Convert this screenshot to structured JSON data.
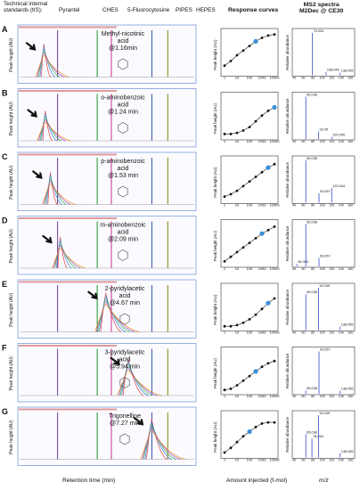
{
  "header": {
    "tis_line1": "Technical internal",
    "tis_line2": "standards (tIS):",
    "standards": [
      "Pyrantel",
      "CHES",
      "5-Fluorocytosine",
      "PIPES",
      "HEPES"
    ],
    "response_title": "Response curves",
    "ms2_title_line1": "MS2 spectra",
    "ms2_title_line2": "M2Dec @ CE30"
  },
  "footer": {
    "retention_label": "Retention time (min)",
    "amount_label": "Amount injected (f-mol)",
    "mz_label": "m/z"
  },
  "axes": {
    "peak_label": "Peak height (AU)",
    "rel_label": "Relative abundance",
    "response_x_ticks": [
      "1",
      "10",
      "100",
      "1000",
      "10000"
    ],
    "ms2_x_ticks": [
      "40",
      "60",
      "80",
      "100",
      "120",
      "140",
      "160"
    ]
  },
  "colors": {
    "tis_lines": [
      "#7a4aa0",
      "#2e9c3a",
      "#d23c9a",
      "#3c5fb4",
      "#8a8a1e"
    ],
    "analyte_traces": [
      "#e23a3a",
      "#3a7ae2",
      "#2fb04a",
      "#9b4ac9",
      "#f08c1e"
    ],
    "response_point_highlight": "#3a8fd8",
    "ms2_bars": "#4a5fd0"
  },
  "chart_data": [
    {
      "type": "line",
      "panel_letter": "A",
      "compound": [
        "Methyl-nicotinic",
        "acid",
        "@1.16min"
      ],
      "retention_min": 1.16,
      "peak_rel": 0.72,
      "response": {
        "x_log10": [
          0,
          0.5,
          1,
          1.5,
          2,
          2.5,
          3,
          3.5,
          4
        ],
        "y_log10": [
          3.4,
          3.8,
          4.3,
          4.7,
          5.1,
          5.5,
          5.8,
          6.0,
          6.1
        ],
        "highlight_index": 5
      },
      "ms2": {
        "peaks": [
          {
            "mz": 79.034,
            "rel": 1.0,
            "label": "79.034"
          },
          {
            "mz": 108.044,
            "rel": 0.08,
            "label": "108.044"
          },
          {
            "mz": 138.055,
            "rel": 0.06,
            "label": "138.055"
          }
        ]
      }
    },
    {
      "type": "line",
      "panel_letter": "B",
      "compound": [
        "o-aminobenzoic",
        "acid",
        "@1.24 min"
      ],
      "retention_min": 1.24,
      "peak_rel": 0.65,
      "response": {
        "x_log10": [
          0,
          0.5,
          1,
          1.5,
          2,
          2.5,
          3,
          3.5,
          4
        ],
        "y_log10": [
          3.0,
          3.0,
          3.1,
          3.3,
          3.6,
          4.1,
          4.6,
          5.0,
          5.3
        ],
        "highlight_index": 8
      },
      "ms2": {
        "peaks": [
          {
            "mz": 65.038,
            "rel": 1.0,
            "label": "65.038"
          },
          {
            "mz": 92.05,
            "rel": 0.18,
            "label": "92.05"
          },
          {
            "mz": 120.045,
            "rel": 0.05,
            "label": "120.045"
          }
        ]
      }
    },
    {
      "type": "line",
      "panel_letter": "C",
      "compound": [
        "p-aminobenzoic",
        "acid",
        "@1.53 min"
      ],
      "retention_min": 1.53,
      "peak_rel": 0.7,
      "response": {
        "x_log10": [
          0,
          0.5,
          1,
          1.5,
          2,
          2.5,
          3,
          3.5,
          4
        ],
        "y_log10": [
          3.1,
          3.3,
          3.6,
          4.0,
          4.4,
          4.8,
          5.2,
          5.6,
          5.9
        ],
        "highlight_index": 7
      },
      "ms2": {
        "peaks": [
          {
            "mz": 65.038,
            "rel": 1.0,
            "label": "65.038"
          },
          {
            "mz": 93.057,
            "rel": 0.22,
            "label": "93.057"
          },
          {
            "mz": 120.044,
            "rel": 0.35,
            "label": "120.044"
          }
        ]
      }
    },
    {
      "type": "line",
      "panel_letter": "D",
      "compound": [
        "m-aminobenzoic",
        "acid",
        "@2.09 min"
      ],
      "retention_min": 2.09,
      "peak_rel": 0.68,
      "response": {
        "x_log10": [
          0,
          0.5,
          1,
          1.5,
          2,
          2.5,
          3,
          3.5,
          4
        ],
        "y_log10": [
          3.0,
          3.4,
          3.8,
          4.2,
          4.6,
          5.0,
          5.4,
          5.7,
          6.0
        ],
        "highlight_index": 6
      },
      "ms2": {
        "peaks": [
          {
            "mz": 46.065,
            "rel": 0.06,
            "label": "46.065"
          },
          {
            "mz": 65.038,
            "rel": 1.0,
            "label": "65.038"
          },
          {
            "mz": 93.057,
            "rel": 0.2,
            "label": "93.057"
          }
        ]
      }
    },
    {
      "type": "line",
      "panel_letter": "E",
      "compound": [
        "2-pyridylacetic",
        "acid",
        "@4.67 min"
      ],
      "retention_min": 4.67,
      "peak_rel": 0.85,
      "response": {
        "x_log10": [
          0,
          0.5,
          1,
          1.5,
          2,
          2.5,
          3,
          3.5,
          4
        ],
        "y_log10": [
          2.9,
          2.9,
          3.0,
          3.2,
          3.5,
          3.9,
          4.4,
          4.9,
          5.3
        ],
        "highlight_index": 7
      },
      "ms2": {
        "peaks": [
          {
            "mz": 65.038,
            "rel": 0.85,
            "label": "65.038"
          },
          {
            "mz": 92.049,
            "rel": 1.0,
            "label": "92.049"
          },
          {
            "mz": 138.055,
            "rel": 0.08,
            "label": "138.055"
          }
        ]
      }
    },
    {
      "type": "line",
      "panel_letter": "F",
      "compound": [
        "3-pyridylacetic",
        "acid",
        "@5.94 min"
      ],
      "retention_min": 5.94,
      "peak_rel": 0.8,
      "response": {
        "x_log10": [
          0,
          0.5,
          1,
          1.5,
          2,
          2.5,
          3,
          3.5,
          4
        ],
        "y_log10": [
          2.9,
          3.0,
          3.3,
          3.7,
          4.1,
          4.5,
          4.9,
          5.2,
          5.4
        ],
        "highlight_index": 5
      },
      "ms2": {
        "peaks": [
          {
            "mz": 65.038,
            "rel": 0.08,
            "label": "65.038"
          },
          {
            "mz": 93.057,
            "rel": 1.0,
            "label": "93.057"
          },
          {
            "mz": 138.055,
            "rel": 0.07,
            "label": "138.055"
          }
        ]
      }
    },
    {
      "type": "line",
      "panel_letter": "G",
      "compound": [
        "Trigonelline",
        "@7.27 min"
      ],
      "retention_min": 7.27,
      "peak_rel": 0.88,
      "response": {
        "x_log10": [
          0,
          0.5,
          1,
          1.5,
          2,
          2.5,
          3,
          3.5,
          4
        ],
        "y_log10": [
          3.0,
          3.4,
          3.9,
          4.4,
          4.8,
          5.2,
          5.5,
          5.6,
          5.6
        ],
        "highlight_index": 4
      },
      "ms2": {
        "peaks": [
          {
            "mz": 65.038,
            "rel": 0.55,
            "label": "65.038"
          },
          {
            "mz": 78.034,
            "rel": 0.45,
            "label": "78.034"
          },
          {
            "mz": 92.049,
            "rel": 1.0,
            "label": "92.049"
          },
          {
            "mz": 138.055,
            "rel": 0.1,
            "label": "138.055"
          }
        ]
      }
    }
  ]
}
